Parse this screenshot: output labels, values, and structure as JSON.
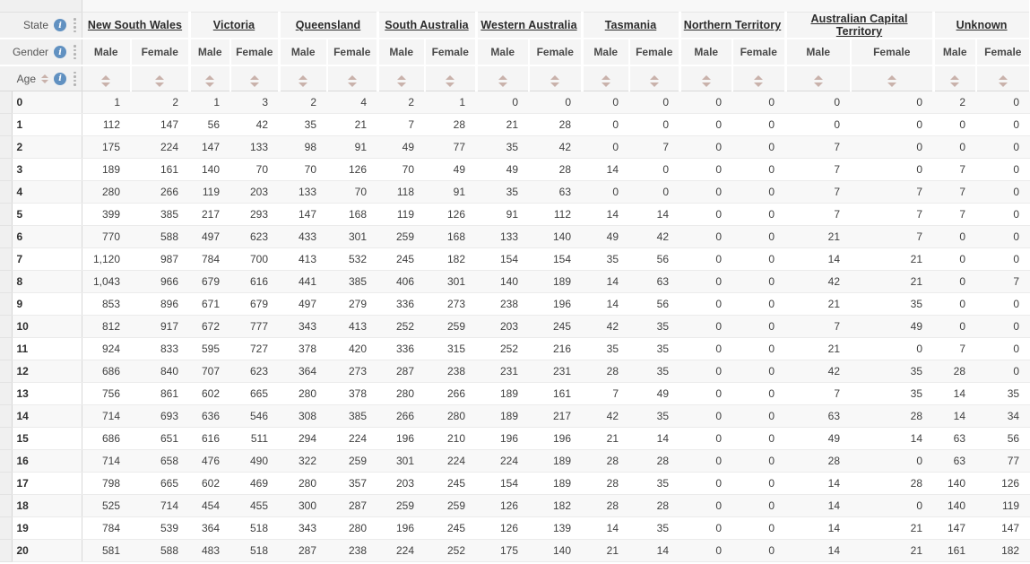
{
  "header": {
    "state_label": "State",
    "gender_label": "Gender",
    "age_label": "Age",
    "male_label": "Male",
    "female_label": "Female",
    "states": [
      "New South Wales",
      "Victoria",
      "Queensland",
      "South Australia",
      "Western Australia",
      "Tasmania",
      "Northern Territory",
      "Australian Capital Territory",
      "Unknown"
    ]
  },
  "icons": {
    "info_glyph": "i",
    "sort_icon": "up-down-triangles",
    "more_options_icon": "vertical-dots"
  },
  "colors": {
    "info_icon": "#6191c1",
    "sort_arrow": "#c9b2ab",
    "header_bg": "#f5f5f5",
    "stripe_bg": "#f8f8f8"
  },
  "table": {
    "rows": [
      {
        "age": "0",
        "values": [
          "1",
          "2",
          "1",
          "3",
          "2",
          "4",
          "2",
          "1",
          "0",
          "0",
          "0",
          "0",
          "0",
          "0",
          "0",
          "0",
          "2",
          "0"
        ]
      },
      {
        "age": "1",
        "values": [
          "112",
          "147",
          "56",
          "42",
          "35",
          "21",
          "7",
          "28",
          "21",
          "28",
          "0",
          "0",
          "0",
          "0",
          "0",
          "0",
          "0",
          "0"
        ]
      },
      {
        "age": "2",
        "values": [
          "175",
          "224",
          "147",
          "133",
          "98",
          "91",
          "49",
          "77",
          "35",
          "42",
          "0",
          "7",
          "0",
          "0",
          "7",
          "0",
          "0",
          "0"
        ]
      },
      {
        "age": "3",
        "values": [
          "189",
          "161",
          "140",
          "70",
          "70",
          "126",
          "70",
          "49",
          "49",
          "28",
          "14",
          "0",
          "0",
          "0",
          "7",
          "0",
          "7",
          "0"
        ]
      },
      {
        "age": "4",
        "values": [
          "280",
          "266",
          "119",
          "203",
          "133",
          "70",
          "118",
          "91",
          "35",
          "63",
          "0",
          "0",
          "0",
          "0",
          "7",
          "7",
          "7",
          "0"
        ]
      },
      {
        "age": "5",
        "values": [
          "399",
          "385",
          "217",
          "293",
          "147",
          "168",
          "119",
          "126",
          "91",
          "112",
          "14",
          "14",
          "0",
          "0",
          "7",
          "7",
          "7",
          "0"
        ]
      },
      {
        "age": "6",
        "values": [
          "770",
          "588",
          "497",
          "623",
          "433",
          "301",
          "259",
          "168",
          "133",
          "140",
          "49",
          "42",
          "0",
          "0",
          "21",
          "7",
          "0",
          "0"
        ]
      },
      {
        "age": "7",
        "values": [
          "1,120",
          "987",
          "784",
          "700",
          "413",
          "532",
          "245",
          "182",
          "154",
          "154",
          "35",
          "56",
          "0",
          "0",
          "14",
          "21",
          "0",
          "0"
        ]
      },
      {
        "age": "8",
        "values": [
          "1,043",
          "966",
          "679",
          "616",
          "441",
          "385",
          "406",
          "301",
          "140",
          "189",
          "14",
          "63",
          "0",
          "0",
          "42",
          "21",
          "0",
          "7"
        ]
      },
      {
        "age": "9",
        "values": [
          "853",
          "896",
          "671",
          "679",
          "497",
          "279",
          "336",
          "273",
          "238",
          "196",
          "14",
          "56",
          "0",
          "0",
          "21",
          "35",
          "0",
          "0"
        ]
      },
      {
        "age": "10",
        "values": [
          "812",
          "917",
          "672",
          "777",
          "343",
          "413",
          "252",
          "259",
          "203",
          "245",
          "42",
          "35",
          "0",
          "0",
          "7",
          "49",
          "0",
          "0"
        ]
      },
      {
        "age": "11",
        "values": [
          "924",
          "833",
          "595",
          "727",
          "378",
          "420",
          "336",
          "315",
          "252",
          "216",
          "35",
          "35",
          "0",
          "0",
          "21",
          "0",
          "7",
          "0"
        ]
      },
      {
        "age": "12",
        "values": [
          "686",
          "840",
          "707",
          "623",
          "364",
          "273",
          "287",
          "238",
          "231",
          "231",
          "28",
          "35",
          "0",
          "0",
          "42",
          "35",
          "28",
          "0"
        ]
      },
      {
        "age": "13",
        "values": [
          "756",
          "861",
          "602",
          "665",
          "280",
          "378",
          "280",
          "266",
          "189",
          "161",
          "7",
          "49",
          "0",
          "0",
          "7",
          "35",
          "14",
          "35"
        ]
      },
      {
        "age": "14",
        "values": [
          "714",
          "693",
          "636",
          "546",
          "308",
          "385",
          "266",
          "280",
          "189",
          "217",
          "42",
          "35",
          "0",
          "0",
          "63",
          "28",
          "14",
          "34"
        ]
      },
      {
        "age": "15",
        "values": [
          "686",
          "651",
          "616",
          "511",
          "294",
          "224",
          "196",
          "210",
          "196",
          "196",
          "21",
          "14",
          "0",
          "0",
          "49",
          "14",
          "63",
          "56"
        ]
      },
      {
        "age": "16",
        "values": [
          "714",
          "658",
          "476",
          "490",
          "322",
          "259",
          "301",
          "224",
          "224",
          "189",
          "28",
          "28",
          "0",
          "0",
          "28",
          "0",
          "63",
          "77"
        ]
      },
      {
        "age": "17",
        "values": [
          "798",
          "665",
          "602",
          "469",
          "280",
          "357",
          "203",
          "245",
          "154",
          "189",
          "28",
          "35",
          "0",
          "0",
          "14",
          "28",
          "140",
          "126"
        ]
      },
      {
        "age": "18",
        "values": [
          "525",
          "714",
          "454",
          "455",
          "300",
          "287",
          "259",
          "259",
          "126",
          "182",
          "28",
          "28",
          "0",
          "0",
          "14",
          "0",
          "140",
          "119"
        ]
      },
      {
        "age": "19",
        "values": [
          "784",
          "539",
          "364",
          "518",
          "343",
          "280",
          "196",
          "245",
          "126",
          "139",
          "14",
          "35",
          "0",
          "0",
          "14",
          "21",
          "147",
          "147"
        ]
      },
      {
        "age": "20",
        "values": [
          "581",
          "588",
          "483",
          "518",
          "287",
          "238",
          "224",
          "252",
          "175",
          "140",
          "21",
          "14",
          "0",
          "0",
          "14",
          "21",
          "161",
          "182"
        ]
      }
    ]
  }
}
